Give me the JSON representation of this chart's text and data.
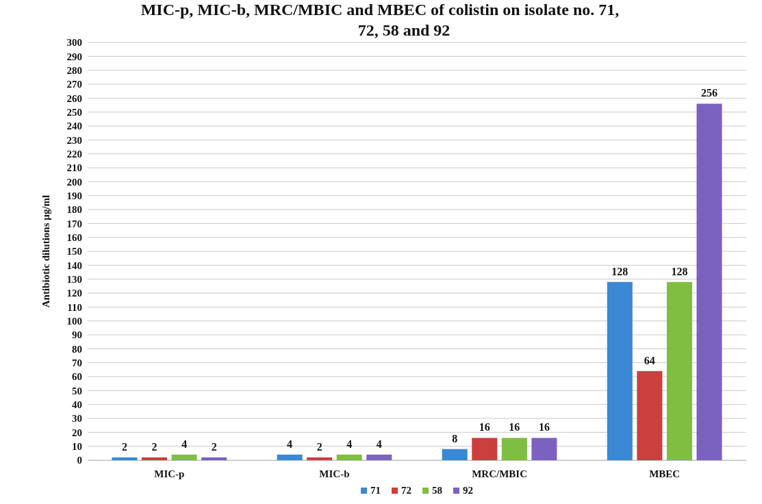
{
  "chart_data": {
    "type": "bar",
    "title": "MIC-p, MIC-b, MRC/MBIC and MBEC of colistin on isolate no. 71, 72, 58 and 92",
    "ylabel": "Antibiotic dilutions µg/ml",
    "categories": [
      "MIC-p",
      "MIC-b",
      "MRC/MBIC",
      "MBEC"
    ],
    "series": [
      {
        "name": "71",
        "color": "#3b88d4",
        "values": [
          2,
          4,
          8,
          128
        ]
      },
      {
        "name": "72",
        "color": "#cc3f3f",
        "values": [
          2,
          2,
          16,
          64
        ]
      },
      {
        "name": "58",
        "color": "#7fbe41",
        "values": [
          4,
          4,
          16,
          128
        ]
      },
      {
        "name": "92",
        "color": "#7b62c0",
        "values": [
          2,
          4,
          16,
          256
        ]
      }
    ],
    "ylim": [
      0,
      300
    ],
    "yticks": [
      0,
      10,
      20,
      30,
      40,
      50,
      60,
      70,
      80,
      90,
      100,
      110,
      120,
      130,
      140,
      150,
      160,
      170,
      180,
      190,
      200,
      210,
      220,
      230,
      240,
      250,
      260,
      270,
      280,
      290,
      300
    ],
    "grid": "y",
    "legend": "bottom",
    "data_labels": true
  }
}
